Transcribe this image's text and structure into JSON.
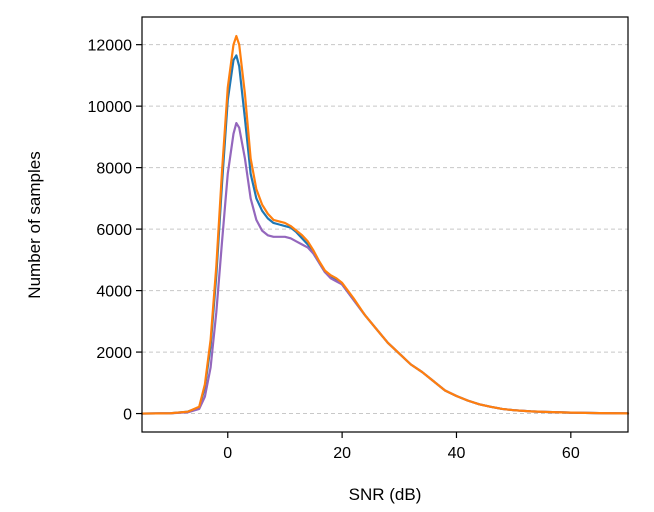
{
  "chart_data": {
    "type": "line",
    "title": "",
    "xlabel": "SNR (dB)",
    "ylabel": "Number of samples",
    "xlim": [
      -15,
      70
    ],
    "ylim": [
      -600,
      12900
    ],
    "x_ticks": [
      0,
      20,
      40,
      60
    ],
    "y_ticks": [
      0,
      2000,
      4000,
      6000,
      8000,
      10000,
      12000
    ],
    "grid": "y-dashed",
    "legend": "none",
    "series": [
      {
        "color": "#1f77b4",
        "x": [
          -15,
          -10,
          -7,
          -5,
          -4,
          -3,
          -2,
          -1,
          0,
          1,
          1.5,
          2,
          3,
          4,
          5,
          6,
          7,
          8,
          9,
          10,
          11,
          12,
          13,
          14,
          15,
          16,
          17,
          18,
          19,
          20,
          22,
          24,
          26,
          28,
          30,
          32,
          34,
          36,
          38,
          40,
          42,
          44,
          46,
          48,
          50,
          53,
          56,
          60,
          65,
          70
        ],
        "y": [
          0,
          10,
          60,
          200,
          850,
          2200,
          4500,
          7500,
          10200,
          11500,
          11650,
          11300,
          9600,
          7800,
          7000,
          6600,
          6350,
          6200,
          6150,
          6100,
          6050,
          5900,
          5700,
          5500,
          5200,
          4900,
          4600,
          4450,
          4350,
          4200,
          3700,
          3200,
          2750,
          2300,
          1950,
          1600,
          1350,
          1050,
          750,
          570,
          420,
          300,
          220,
          150,
          110,
          70,
          50,
          30,
          15,
          5
        ]
      },
      {
        "color": "#9467bd",
        "x": [
          -15,
          -10,
          -7,
          -5,
          -4,
          -3,
          -2,
          -1,
          0,
          1,
          1.5,
          2,
          3,
          4,
          5,
          6,
          7,
          8,
          9,
          10,
          11,
          12,
          13,
          14,
          15,
          16,
          17,
          18,
          19,
          20,
          22,
          24,
          26,
          28,
          30,
          32,
          34,
          36,
          38,
          40,
          42,
          44,
          46,
          48,
          50,
          53,
          56,
          60,
          65,
          70
        ],
        "y": [
          0,
          10,
          40,
          150,
          550,
          1500,
          3300,
          5600,
          7800,
          9100,
          9450,
          9300,
          8300,
          7000,
          6300,
          5950,
          5800,
          5750,
          5750,
          5750,
          5700,
          5600,
          5500,
          5400,
          5200,
          4900,
          4600,
          4400,
          4300,
          4200,
          3700,
          3200,
          2750,
          2300,
          1950,
          1600,
          1350,
          1050,
          750,
          570,
          420,
          300,
          220,
          150,
          110,
          70,
          50,
          30,
          15,
          5
        ]
      },
      {
        "color": "#ff7f0e",
        "x": [
          -15,
          -10,
          -7,
          -5,
          -4,
          -3,
          -2,
          -1,
          0,
          1,
          1.5,
          2,
          3,
          4,
          5,
          6,
          7,
          8,
          9,
          10,
          11,
          12,
          13,
          14,
          15,
          16,
          17,
          18,
          19,
          20,
          22,
          24,
          26,
          28,
          30,
          32,
          34,
          36,
          38,
          40,
          42,
          44,
          46,
          48,
          50,
          53,
          56,
          60,
          65,
          70
        ],
        "y": [
          0,
          10,
          60,
          220,
          950,
          2400,
          4800,
          7900,
          10600,
          12000,
          12280,
          12000,
          10400,
          8300,
          7300,
          6800,
          6500,
          6300,
          6250,
          6200,
          6100,
          5950,
          5800,
          5600,
          5300,
          4950,
          4650,
          4500,
          4400,
          4250,
          3750,
          3200,
          2750,
          2300,
          1950,
          1600,
          1350,
          1050,
          750,
          570,
          420,
          300,
          220,
          150,
          110,
          70,
          50,
          30,
          15,
          5
        ]
      }
    ]
  }
}
